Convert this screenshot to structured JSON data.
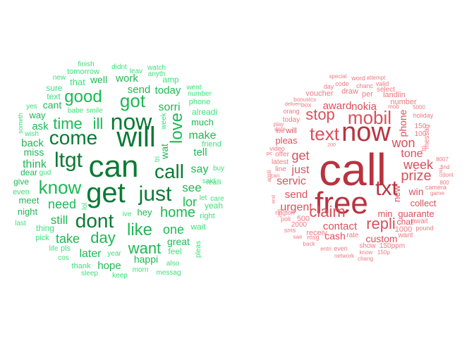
{
  "colors": {
    "ham_dark": "#0a7a35",
    "ham_mid": "#1db954",
    "ham_light": "#3fe07a",
    "spam_dark": "#b8333f",
    "spam_mid": "#d9505c",
    "spam_light": "#ef7a83"
  },
  "clouds": [
    {
      "name": "ham-word-cloud",
      "words": [
        "get",
        "can",
        "will",
        "now",
        "come",
        "just",
        "dont",
        "call",
        "ltgt",
        "know",
        "love",
        "got",
        "time",
        "good",
        "like",
        "day",
        "ill",
        "want",
        "home",
        "one",
        "see",
        "lor",
        "say",
        "need",
        "take",
        "still",
        "sorri",
        "make",
        "tell",
        "think",
        "back",
        "hope",
        "later",
        "work",
        "send",
        "today",
        "happi",
        "great",
        "ask",
        "miss",
        "way",
        "cant",
        "text",
        "sure",
        "well",
        "that",
        "also",
        "feel",
        "night",
        "give",
        "meet",
        "dear",
        "thing",
        "even",
        "pls",
        "life",
        "cos",
        "thank",
        "sleep",
        "morn",
        "keep",
        "messag",
        "year",
        "ive",
        "hey",
        "wat",
        "tri",
        "week",
        "alreadi",
        "much",
        "friend",
        "yeah",
        "said",
        "buy",
        "let",
        "care",
        "realli",
        "right",
        "wait",
        "pleas",
        "amp",
        "went",
        "number",
        "phone",
        "watch",
        "didnt",
        "leav",
        "anyth",
        "finish",
        "tomorrow",
        "new",
        "babe",
        "smile",
        "yes",
        "wish",
        "someth",
        "gud",
        "last",
        "pick",
        "lol",
        "amp"
      ]
    },
    {
      "name": "spam-word-cloud",
      "words": [
        "call",
        "free",
        "now",
        "txt",
        "mobil",
        "text",
        "claim",
        "stop",
        "repli",
        "prize",
        "won",
        "week",
        "get",
        "urgent",
        "servic",
        "just",
        "send",
        "contact",
        "nokia",
        "award",
        "cash",
        "tone",
        "win",
        "phone",
        "custom",
        "guarante",
        "min",
        "collect",
        "new",
        "pleas",
        "will",
        "today",
        "latest",
        "2000",
        "500",
        "1000",
        "150ppm",
        "150",
        "100",
        "claim",
        "number",
        "chat",
        "messag",
        "receiv",
        "draw",
        "voucher",
        "per",
        "landlin",
        "code",
        "select",
        "word",
        "special",
        "attempt",
        "valid",
        "chanc",
        "day",
        "orang",
        "bonus",
        "tcs",
        "box",
        "deliveri",
        "mob",
        "5000",
        "holiday",
        "await",
        "find",
        "8007",
        "camera",
        "game",
        "dont",
        "pound",
        "want",
        "show",
        "rate",
        "rington",
        "poli",
        "sae",
        "sms",
        "msg",
        "back",
        "entri",
        "everi",
        "network",
        "know",
        "chang",
        "150p",
        "offer",
        "video",
        "line",
        "appli",
        "can",
        "play",
        "live",
        "date",
        "pic",
        "end",
        "tri",
        "800",
        "cost",
        "200",
        "2nd"
      ]
    }
  ]
}
